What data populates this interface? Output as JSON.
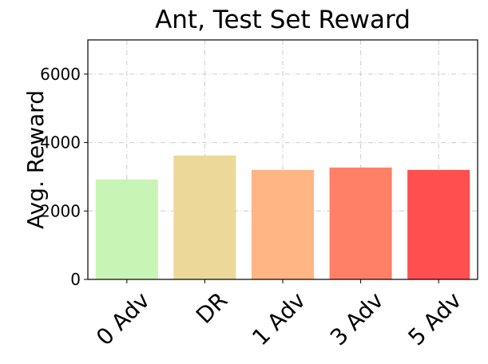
{
  "chart_data": {
    "type": "bar",
    "title": "Ant, Test Set Reward",
    "xlabel": "",
    "ylabel": "Avg. Reward",
    "categories": [
      "0 Adv",
      "DR",
      "1 Adv",
      "3 Adv",
      "5 Adv"
    ],
    "values": [
      2920,
      3620,
      3200,
      3270,
      3200
    ],
    "ylim": [
      0,
      7000
    ],
    "yticks": [
      0,
      2000,
      4000,
      6000
    ],
    "grid": true,
    "legend": "none",
    "bar_colors": [
      "#c8f5b5",
      "#ecd99a",
      "#ffb584",
      "#ff8066",
      "#ff4f4f"
    ],
    "grid_color": "#cccccc"
  }
}
